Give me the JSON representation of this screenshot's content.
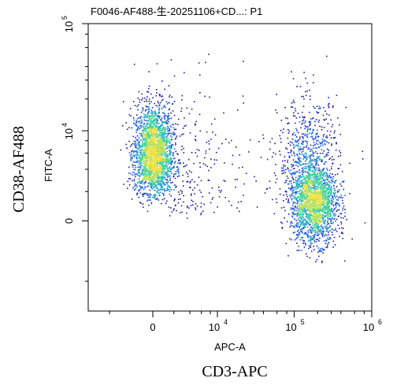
{
  "chart_data": {
    "type": "scatter",
    "title": "F0046-AF488-生-20251106+CD...: P1",
    "xlabel": "APC-A",
    "ylabel": "FITC-A",
    "outer_xlabel": "CD3-APC",
    "outer_ylabel": "CD38-AF488",
    "x_scale": "biexponential",
    "y_scale": "biexponential",
    "xlim": [
      -10000,
      1000000
    ],
    "ylim": [
      -10000,
      100000
    ],
    "x_ticks": [
      {
        "value": 0,
        "label": "0",
        "exp": ""
      },
      {
        "value": 10000,
        "label": "10",
        "exp": "4"
      },
      {
        "value": 100000,
        "label": "10",
        "exp": "5"
      },
      {
        "value": 1000000,
        "label": "10",
        "exp": "6"
      }
    ],
    "y_ticks": [
      {
        "value": 0,
        "label": "0",
        "exp": ""
      },
      {
        "value": 10000,
        "label": "10",
        "exp": "4"
      },
      {
        "value": 100000,
        "label": "10",
        "exp": "5"
      }
    ],
    "density_colors": [
      "#1a1aa8",
      "#1f5fe0",
      "#22a7c7",
      "#3fd19b",
      "#b6e05a",
      "#f0e040"
    ],
    "series": [
      {
        "populations": [
          {
            "x_center": 0,
            "y_center": 6000,
            "x_spread": 900,
            "y_spread_frac": 0.55,
            "weight": 0.45
          },
          {
            "x_center": 180000,
            "y_center": 1100,
            "x_spread_frac": 0.35,
            "y_spread": 1300,
            "weight": 0.35
          },
          {
            "x_center": 150000,
            "y_center": 5000,
            "x_spread_frac": 0.45,
            "y_spread_frac": 0.7,
            "weight": 0.15
          },
          {
            "x_center": 5000,
            "y_center": 4000,
            "x_spread_frac": 1.0,
            "y_spread_frac": 1.0,
            "weight": 0.05
          }
        ]
      }
    ],
    "grid": false
  }
}
